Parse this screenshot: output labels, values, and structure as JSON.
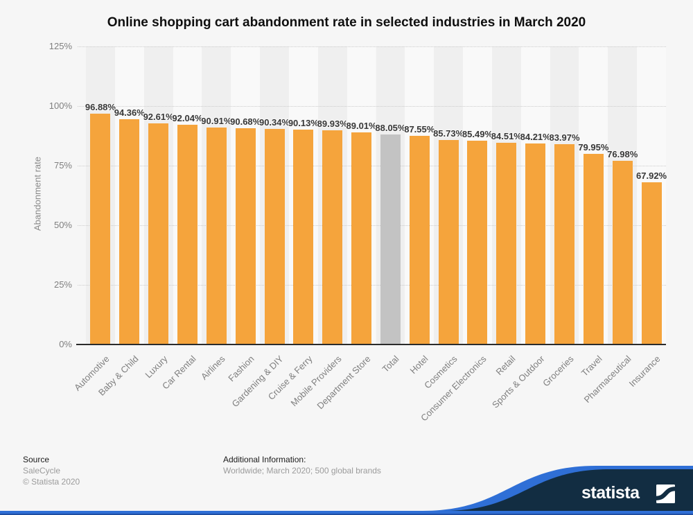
{
  "chart_data": {
    "type": "bar",
    "title": "Online shopping cart abandonment rate in selected industries in March 2020",
    "categories": [
      "Automotive",
      "Baby & Child",
      "Luxury",
      "Car Rental",
      "Airlines",
      "Fashion",
      "Gardening & DIY",
      "Cruise & Ferry",
      "Mobile Providers",
      "Department Store",
      "Total",
      "Hotel",
      "Cosmetics",
      "Consumer Electronics",
      "Retail",
      "Sports & Outdoor",
      "Groceries",
      "Travel",
      "Pharmaceutical",
      "Insurance"
    ],
    "values": [
      96.88,
      94.36,
      92.61,
      92.04,
      90.91,
      90.68,
      90.34,
      90.13,
      89.93,
      89.01,
      88.05,
      87.55,
      85.73,
      85.49,
      84.51,
      84.21,
      83.97,
      79.95,
      76.98,
      67.92
    ],
    "unit": "%",
    "xlabel": "",
    "ylabel": "Abandonment rate",
    "ylim": [
      0,
      125
    ],
    "ytick_step": 25,
    "yticks": [
      "0%",
      "25%",
      "50%",
      "75%",
      "100%",
      "125%"
    ],
    "grid": "horizontal-dotted",
    "legend": "none",
    "bar_color": "#F5A43C",
    "highlight_category": "Total",
    "highlight_color": "#C3C3C3",
    "background_stripes": [
      "#EFEFEF",
      "#F9F9F9"
    ]
  },
  "footer": {
    "source_label": "Source",
    "source_lines": [
      "SaleCycle",
      "© Statista 2020"
    ],
    "additional_label": "Additional Information:",
    "additional_text": "Worldwide; March 2020; 500 global brands"
  },
  "branding": {
    "wordmark": "statista",
    "navy": "#122D42",
    "blue": "#2F6FD6",
    "bottom_line": "#1E4B9E"
  }
}
